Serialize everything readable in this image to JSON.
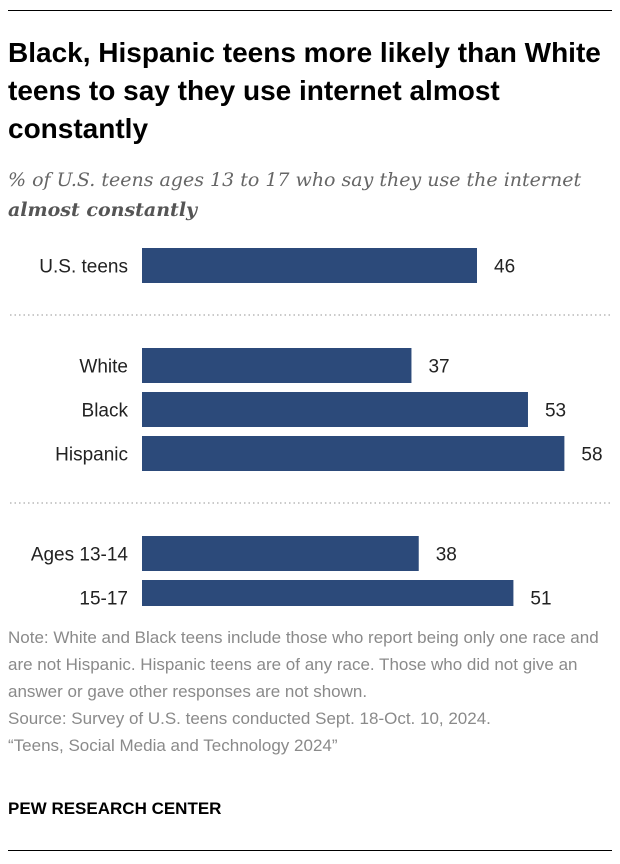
{
  "title": "Black, Hispanic teens more likely than White teens to say they use internet almost constantly",
  "subtitle": {
    "prefix": "% of U.S. teens ages 13 to 17 who say they use the internet ",
    "emphasis": "almost constantly"
  },
  "chart_data": {
    "type": "bar",
    "orientation": "horizontal",
    "title": "Black, Hispanic teens more likely than White teens to say they use internet almost constantly",
    "xlabel": "",
    "ylabel": "",
    "xlim": [
      0,
      100
    ],
    "bar_color": "#2c4a7a",
    "groups": [
      {
        "categories": [
          "U.S. teens"
        ],
        "values": [
          46
        ]
      },
      {
        "categories": [
          "White",
          "Black",
          "Hispanic"
        ],
        "values": [
          37,
          53,
          58
        ]
      },
      {
        "categories": [
          "Ages 13-14",
          "15-17"
        ],
        "values": [
          38,
          51
        ]
      }
    ]
  },
  "notes": [
    "Note: White and Black teens include those who report being only one race and are not Hispanic. Hispanic teens are of any race. Those who did not give an answer or gave other responses are not shown.",
    "Source: Survey of U.S. teens conducted Sept. 18-Oct. 10, 2024.",
    "“Teens, Social Media and Technology 2024”"
  ],
  "organization": "PEW RESEARCH CENTER",
  "colors": {
    "bar": "#2c4a7a",
    "note_text": "#8a8a8a",
    "subtitle_text": "#666666",
    "divider": "#aaaaaa"
  }
}
